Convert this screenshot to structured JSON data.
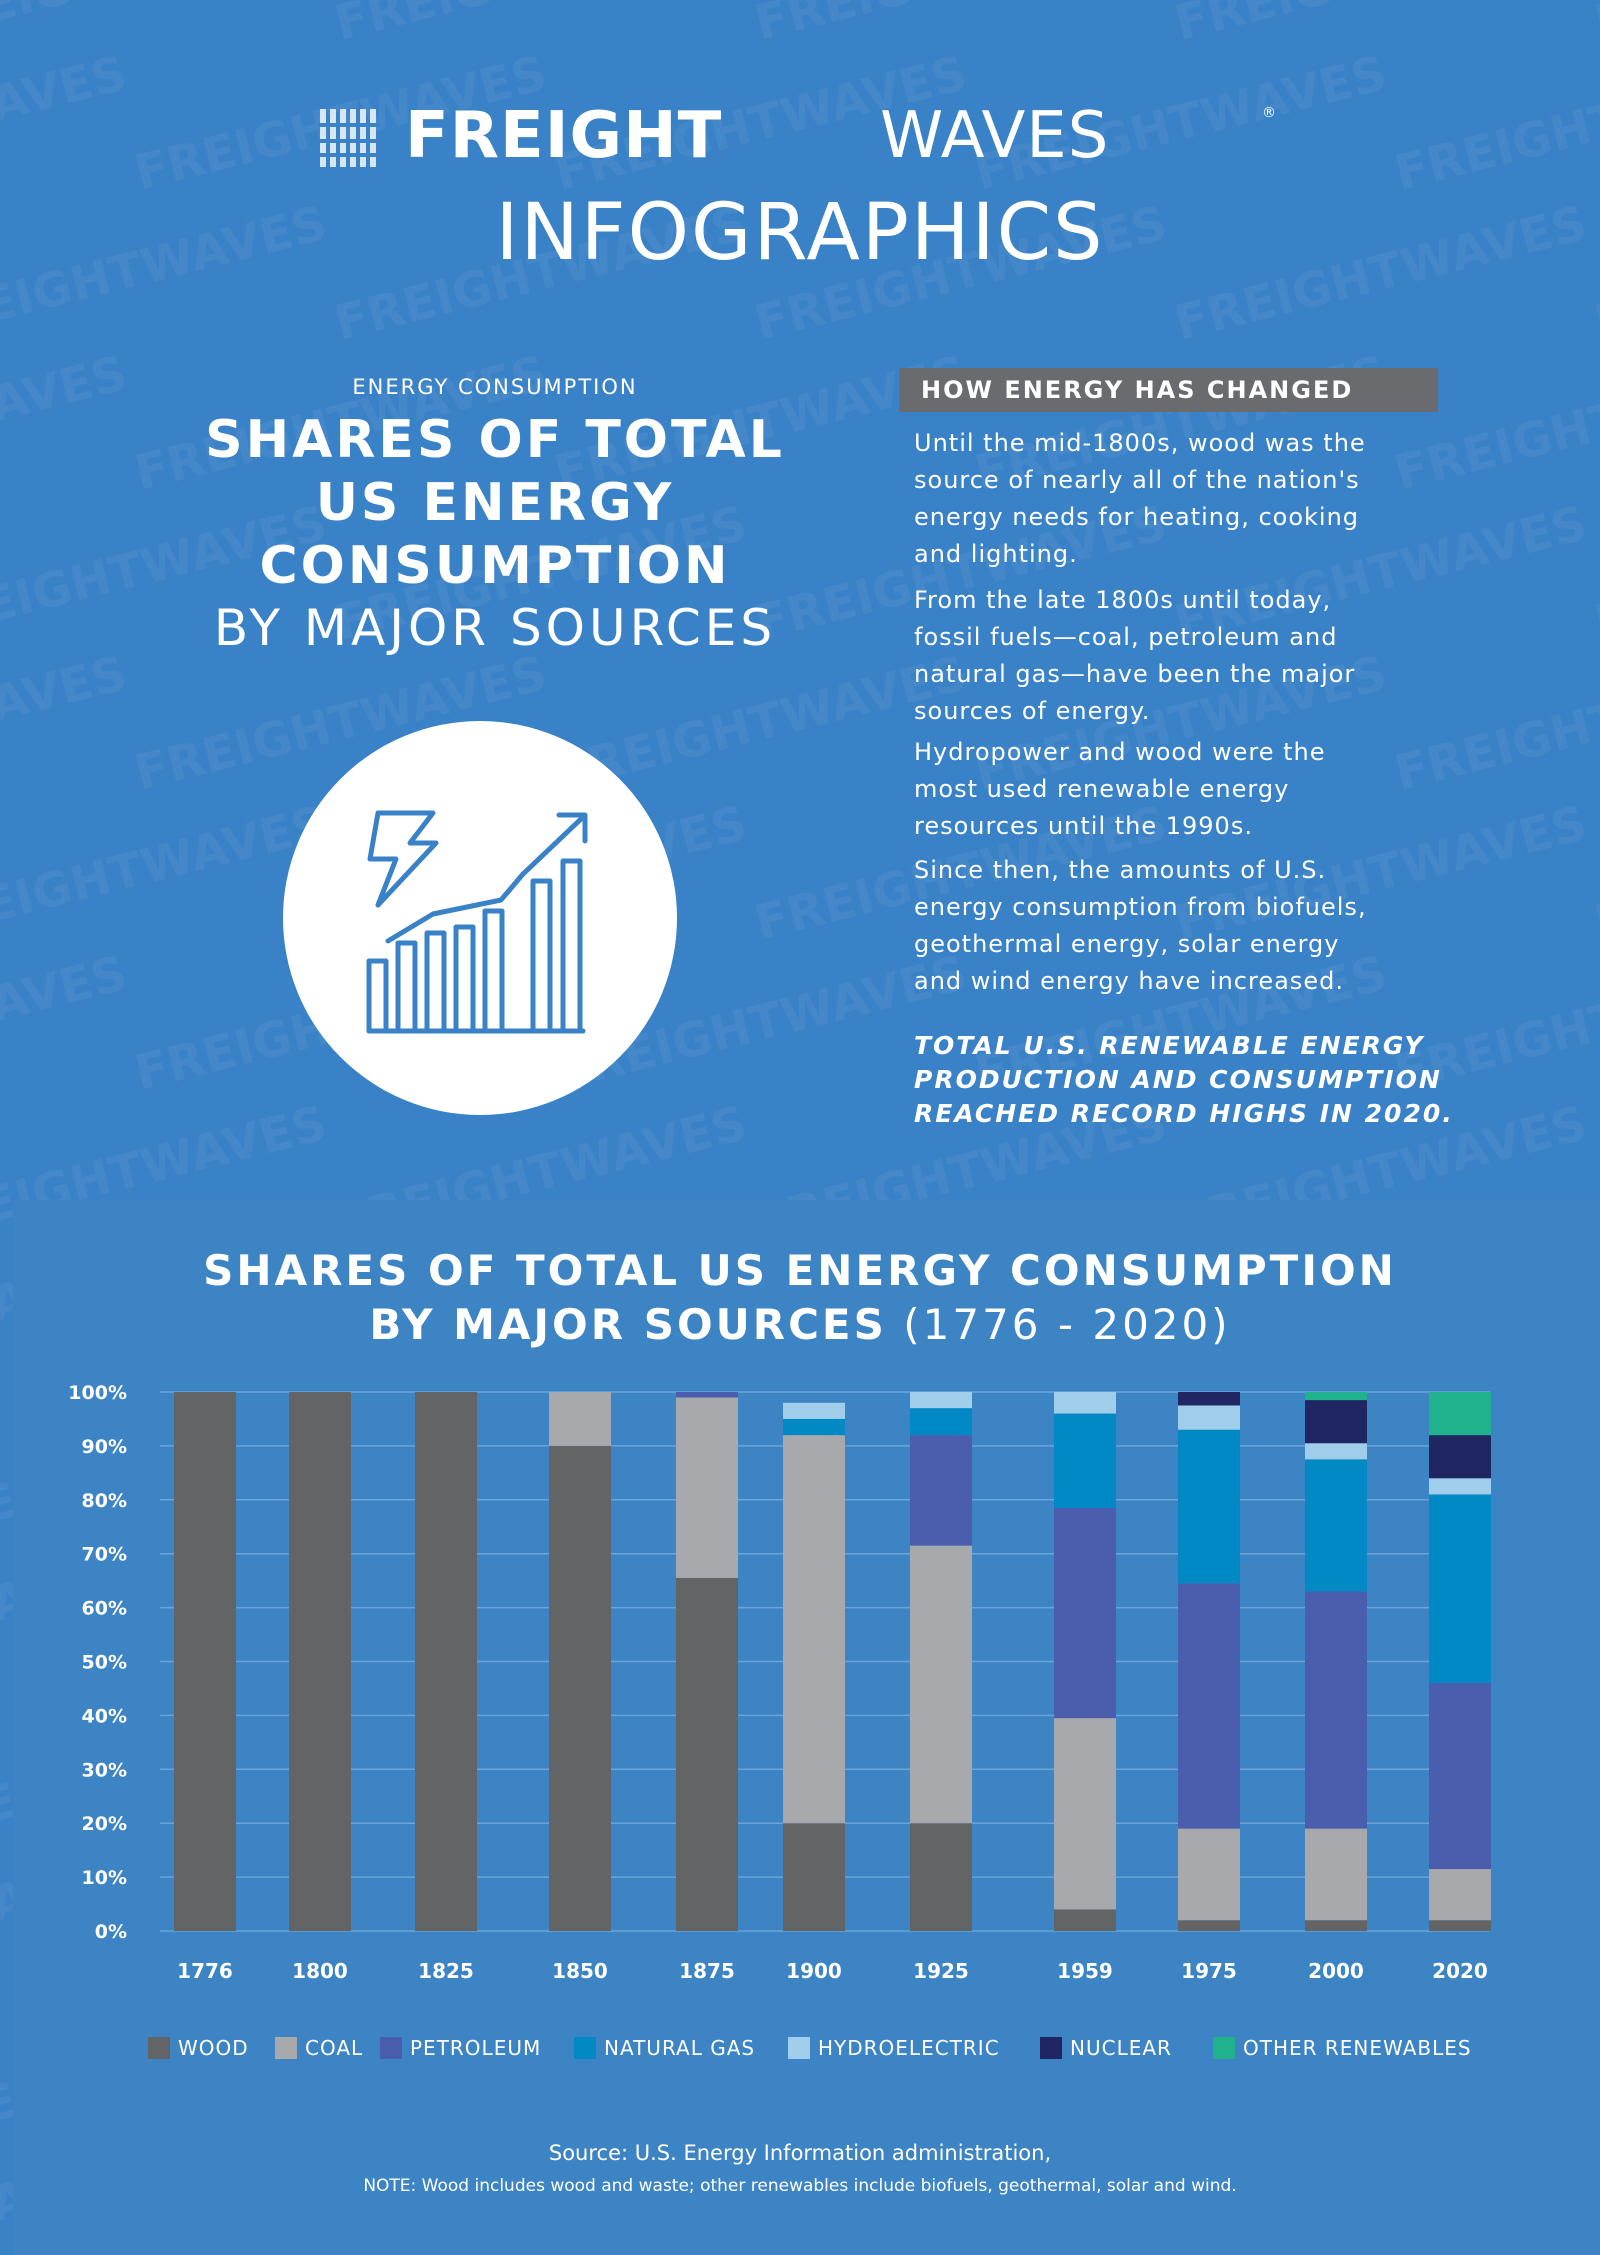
{
  "brand": {
    "name_bold": "FREIGHT",
    "name_light": "WAVES",
    "reg": "®",
    "subtitle": "INFOGRAPHICS"
  },
  "watermark_text": "FREIGHTWAVES",
  "intro": {
    "eyebrow": "ENERGY CONSUMPTION",
    "title_line1": "SHARES OF TOTAL",
    "title_line2": "US ENERGY",
    "title_line3": "CONSUMPTION",
    "subtitle": "BY MAJOR SOURCES",
    "icon": "energy-growth-chart-icon"
  },
  "changes": {
    "heading": "HOW ENERGY HAS CHANGED",
    "paragraphs": [
      [
        "Until the mid-1800s, wood was the",
        "source of nearly all of the nation's",
        "energy needs for heating, cooking",
        "and lighting."
      ],
      [
        "From the late 1800s until today,",
        "fossil fuels—coal, petroleum and",
        "natural gas—have been the major",
        "sources of energy."
      ],
      [
        "Hydropower and wood were the",
        "most used renewable energy",
        "resources until the 1990s."
      ],
      [
        "Since then, the amounts of U.S.",
        "energy consumption from biofuels,",
        "geothermal energy, solar energy",
        "and wind energy have increased."
      ]
    ],
    "emphasis": [
      "TOTAL U.S. RENEWABLE ENERGY",
      "PRODUCTION AND CONSUMPTION",
      "REACHED RECORD HIGHS IN 2020."
    ]
  },
  "chart_data": {
    "type": "bar",
    "stacked": true,
    "title": "SHARES OF TOTAL US ENERGY CONSUMPTION BY MAJOR SOURCES",
    "title_line1": "SHARES OF TOTAL US ENERGY CONSUMPTION",
    "title_line2_bold": "BY MAJOR SOURCES",
    "title_line2_light": "(1776 - 2020)",
    "ylim": [
      0,
      100
    ],
    "y_ticks": [
      "0%",
      "10%",
      "20%",
      "30%",
      "40%",
      "50%",
      "60%",
      "70%",
      "80%",
      "90%",
      "100%"
    ],
    "grid": true,
    "legend_position": "bottom",
    "categories": [
      "1776",
      "1800",
      "1825",
      "1850",
      "1875",
      "1900",
      "1925",
      "1959",
      "1975",
      "2000",
      "2020"
    ],
    "series": [
      {
        "name": "WOOD",
        "color": "#636466",
        "values": [
          100,
          100,
          100,
          90,
          65.5,
          20,
          20,
          4,
          2,
          2,
          2
        ]
      },
      {
        "name": "COAL",
        "color": "#a7a9ac",
        "values": [
          0,
          0,
          0,
          10,
          33.5,
          72,
          51.5,
          35.5,
          17,
          17,
          9.5
        ]
      },
      {
        "name": "PETROLEUM",
        "color": "#4a5ead",
        "values": [
          0,
          0,
          0,
          0,
          1,
          0,
          20.5,
          39,
          45.5,
          44,
          34.5
        ]
      },
      {
        "name": "NATURAL GAS",
        "color": "#0089c4",
        "values": [
          0,
          0,
          0,
          0,
          0,
          3,
          5,
          17.5,
          28.5,
          24.5,
          35
        ]
      },
      {
        "name": "HYDROELECTRIC",
        "color": "#9fcdea",
        "values": [
          0,
          0,
          0,
          0,
          0,
          3,
          3,
          4,
          4.5,
          3,
          3
        ]
      },
      {
        "name": "NUCLEAR",
        "color": "#1f2662",
        "values": [
          0,
          0,
          0,
          0,
          0,
          0,
          0,
          0,
          2.5,
          8,
          8
        ]
      },
      {
        "name": "OTHER RENEWABLES",
        "color": "#20b28c",
        "values": [
          0,
          0,
          0,
          0,
          0,
          0,
          0,
          0,
          0,
          1.5,
          8
        ]
      }
    ]
  },
  "source": {
    "label": "Source:",
    "text": "U.S. Energy Information administration,"
  },
  "note": "NOTE: Wood includes wood and waste; other renewables include biofuels, geothermal, solar and wind.",
  "colors": {
    "background": "#3a82c7",
    "panel": "#3d84c5",
    "heading_bar": "#696b6e",
    "icon_stroke": "#3a82c7"
  }
}
